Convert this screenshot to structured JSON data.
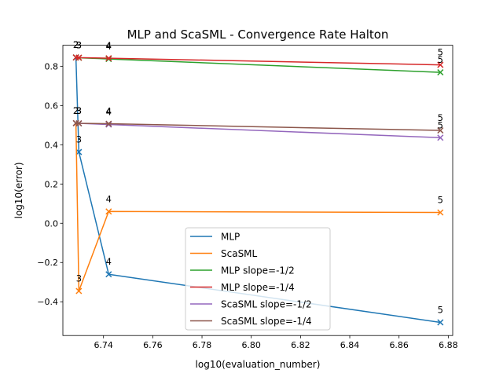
{
  "chart_data": {
    "type": "line",
    "title": "MLP and ScaSML - Convergence Rate Halton",
    "xlabel": "log10(evaluation_number)",
    "ylabel": "log10(error)",
    "xlim": [
      6.7235,
      6.8818
    ],
    "ylim": [
      -0.572,
      0.907
    ],
    "xticks": [
      "6.74",
      "6.76",
      "6.78",
      "6.80",
      "6.82",
      "6.84",
      "6.86",
      "6.88"
    ],
    "xtick_values": [
      6.74,
      6.76,
      6.78,
      6.8,
      6.82,
      6.84,
      6.86,
      6.88
    ],
    "yticks": [
      "−0.4",
      "−0.2",
      "0.0",
      "0.2",
      "0.4",
      "0.6",
      "0.8"
    ],
    "ytick_values": [
      -0.4,
      -0.2,
      0.0,
      0.2,
      0.4,
      0.6,
      0.8
    ],
    "grid": false,
    "legend_position": "lower center",
    "series": [
      {
        "name": "MLP",
        "color": "#1f77b4",
        "x": [
          6.7288,
          6.73,
          6.7421,
          6.8768
        ],
        "y": [
          0.845,
          0.363,
          -0.26,
          -0.505
        ],
        "labels": [
          "2",
          "3",
          "4",
          "5"
        ]
      },
      {
        "name": "ScaSML",
        "color": "#ff7f0e",
        "x": [
          6.7288,
          6.73,
          6.7421,
          6.8768
        ],
        "y": [
          0.51,
          -0.345,
          0.06,
          0.055
        ],
        "labels": [
          "2",
          "3",
          "4",
          "5"
        ]
      },
      {
        "name": "MLP slope=-1/2",
        "color": "#2ca02c",
        "x": [
          6.7288,
          6.73,
          6.7421,
          6.8768
        ],
        "y": [
          0.845,
          0.843,
          0.837,
          0.769
        ],
        "labels": [
          "2",
          "3",
          "4",
          "5"
        ]
      },
      {
        "name": "MLP slope=-1/4",
        "color": "#d62728",
        "x": [
          6.7288,
          6.73,
          6.7421,
          6.8768
        ],
        "y": [
          0.845,
          0.844,
          0.841,
          0.807
        ],
        "labels": [
          "2",
          "3",
          "4",
          "5"
        ]
      },
      {
        "name": "ScaSML slope=-1/2",
        "color": "#9467bd",
        "x": [
          6.7288,
          6.73,
          6.7421,
          6.8768
        ],
        "y": [
          0.51,
          0.509,
          0.503,
          0.436
        ],
        "labels": [
          "2",
          "3",
          "4",
          "5"
        ]
      },
      {
        "name": "ScaSML slope=-1/4",
        "color": "#8c564b",
        "x": [
          6.7288,
          6.73,
          6.7421,
          6.8768
        ],
        "y": [
          0.51,
          0.509,
          0.507,
          0.473
        ],
        "labels": [
          "2",
          "3",
          "4",
          "5"
        ]
      }
    ]
  }
}
